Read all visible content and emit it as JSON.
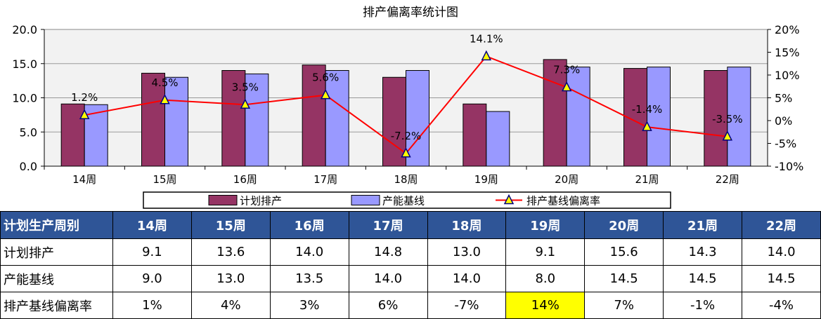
{
  "chart_data": {
    "type": "bar",
    "title": "排产偏离率统计图",
    "categories": [
      "14周",
      "15周",
      "16周",
      "17周",
      "18周",
      "19周",
      "20周",
      "21周",
      "22周"
    ],
    "ylim": [
      0,
      20
    ],
    "y_ticks": [
      "0.0",
      "5.0",
      "10.0",
      "15.0",
      "20.0"
    ],
    "y2lim": [
      -10,
      20
    ],
    "y2_ticks": [
      "-10%",
      "-5%",
      "0%",
      "5%",
      "10%",
      "15%",
      "20%"
    ],
    "grid": true,
    "legend_position": "bottom",
    "series": [
      {
        "name": "计划排产",
        "type": "bar",
        "color": "#953464",
        "values": [
          9.1,
          13.6,
          14.0,
          14.8,
          13.0,
          9.1,
          15.6,
          14.3,
          14.0
        ]
      },
      {
        "name": "产能基线",
        "type": "bar",
        "color": "#9999ff",
        "values": [
          9.0,
          13.0,
          13.5,
          14.0,
          14.0,
          8.0,
          14.5,
          14.5,
          14.5
        ]
      },
      {
        "name": "排产基线偏离率",
        "type": "line",
        "axis": "secondary",
        "color": "#ff0000",
        "marker_color": "#ffff00",
        "values": [
          1.2,
          4.5,
          3.5,
          5.6,
          -7.2,
          14.1,
          7.3,
          -1.4,
          -3.5
        ],
        "labels": [
          "1.2%",
          "4.5%",
          "3.5%",
          "5.6%",
          "-7.2%",
          "14.1%",
          "7.3%",
          "-1.4%",
          "-3.5%"
        ]
      }
    ]
  },
  "table": {
    "header_label": "计划生产周别",
    "weeks": [
      "14周",
      "15周",
      "16周",
      "17周",
      "18周",
      "19周",
      "20周",
      "21周",
      "22周"
    ],
    "rows": [
      {
        "label": "计划排产",
        "values": [
          "9.1",
          "13.6",
          "14.0",
          "14.8",
          "13.0",
          "9.1",
          "15.6",
          "14.3",
          "14.0"
        ]
      },
      {
        "label": "产能基线",
        "values": [
          "9.0",
          "13.0",
          "13.5",
          "14.0",
          "14.0",
          "8.0",
          "14.5",
          "14.5",
          "14.5"
        ]
      },
      {
        "label": "排产基线偏离率",
        "values": [
          "1%",
          "4%",
          "3%",
          "6%",
          "-7%",
          "14%",
          "7%",
          "-1%",
          "-4%"
        ],
        "highlight_index": 5
      }
    ],
    "highlight_color": "#ffff00",
    "header_color": "#2f5597"
  }
}
